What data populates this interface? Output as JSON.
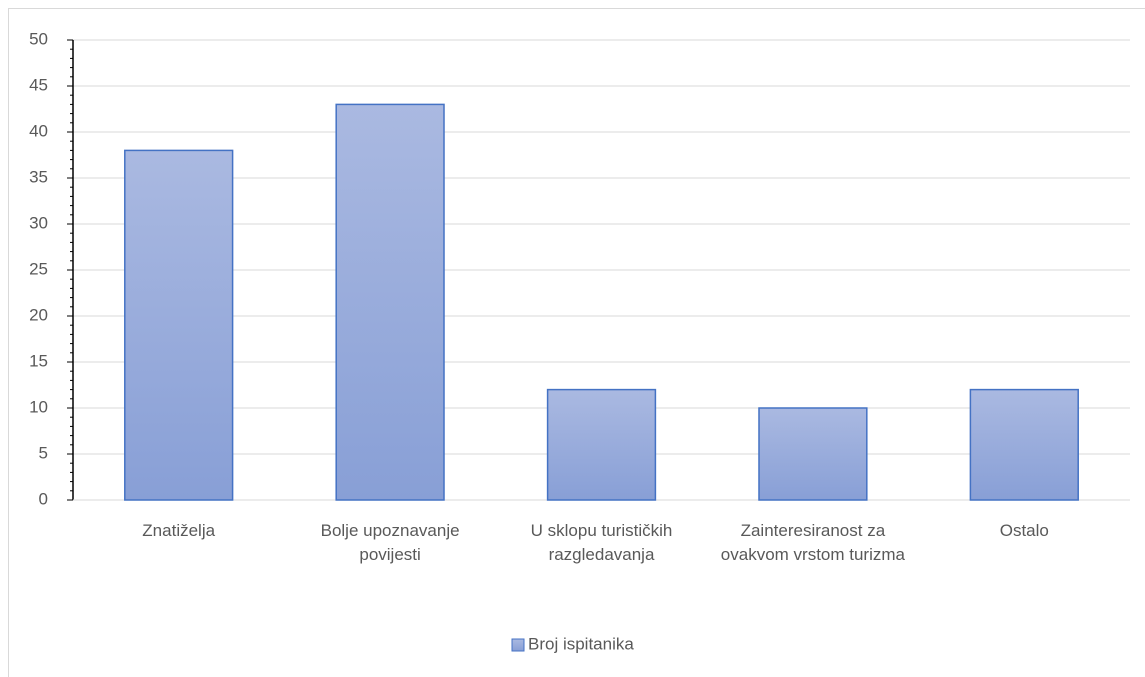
{
  "chart_data": {
    "type": "bar",
    "categories": [
      "Znatiželja",
      "Bolje upoznavanje povijesti",
      "U sklopu turističkih razgledavanja",
      "Zainteresiranost za ovakvom vrstom turizma",
      "Ostalo"
    ],
    "series": [
      {
        "name": "Broj ispitanika",
        "color": "#4472c4",
        "values": [
          38,
          43,
          12,
          10,
          12
        ]
      }
    ],
    "ylim": [
      0,
      50
    ],
    "yticks": [
      0,
      5,
      10,
      15,
      20,
      25,
      30,
      35,
      40,
      45,
      50
    ],
    "grid": true,
    "legend": "bottom"
  }
}
